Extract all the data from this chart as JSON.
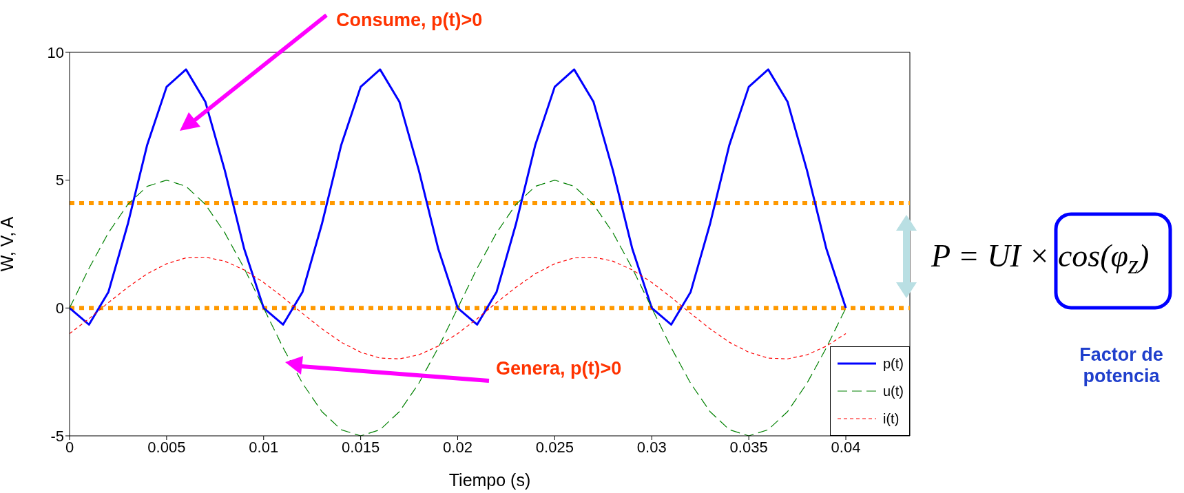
{
  "chart_data": {
    "type": "line",
    "xlabel": "Tiempo (s)",
    "ylabel": "W, V, A",
    "x": [
      0,
      0.001,
      0.002,
      0.003,
      0.004,
      0.005,
      0.006,
      0.007,
      0.008,
      0.009,
      0.01,
      0.011,
      0.012,
      0.013,
      0.014,
      0.015,
      0.016,
      0.017,
      0.018,
      0.019,
      0.02,
      0.021,
      0.022,
      0.023,
      0.024,
      0.025,
      0.026,
      0.027,
      0.028,
      0.029,
      0.03,
      0.031,
      0.032,
      0.033,
      0.034,
      0.035,
      0.036,
      0.037,
      0.038,
      0.039,
      0.04
    ],
    "series": [
      {
        "name": "p(t)",
        "color": "#0000ff",
        "line_style": "solid",
        "values": [
          0,
          -0.65,
          0.62,
          3.28,
          6.38,
          8.65,
          9.33,
          8.06,
          5.38,
          2.31,
          0,
          -0.65,
          0.62,
          3.28,
          6.38,
          8.65,
          9.33,
          8.06,
          5.38,
          2.31,
          0,
          -0.65,
          0.62,
          3.28,
          6.38,
          8.65,
          9.33,
          8.06,
          5.38,
          2.31,
          0,
          -0.65,
          0.62,
          3.28,
          6.38,
          8.65,
          9.33,
          8.06,
          5.38,
          2.31,
          0
        ]
      },
      {
        "name": "u(t)",
        "color": "#008000",
        "line_style": "dashed",
        "values": [
          0,
          1.55,
          2.94,
          4.05,
          4.76,
          5,
          4.76,
          4.05,
          2.94,
          1.55,
          0,
          -1.55,
          -2.94,
          -4.05,
          -4.76,
          -5,
          -4.76,
          -4.05,
          -2.94,
          -1.55,
          0,
          1.55,
          2.94,
          4.05,
          4.76,
          5,
          4.76,
          4.05,
          2.94,
          1.55,
          0,
          -1.55,
          -2.94,
          -4.05,
          -4.76,
          -5,
          -4.76,
          -4.05,
          -2.94,
          -1.55,
          0
        ]
      },
      {
        "name": "i(t)",
        "color": "#ff0000",
        "line_style": "dotted",
        "values": [
          -1,
          -0.42,
          0.21,
          0.81,
          1.34,
          1.73,
          1.96,
          1.99,
          1.83,
          1.49,
          1,
          0.42,
          -0.21,
          -0.81,
          -1.34,
          -1.73,
          -1.96,
          -1.99,
          -1.83,
          -1.49,
          -1,
          -0.42,
          0.21,
          0.81,
          1.34,
          1.73,
          1.96,
          1.99,
          1.83,
          1.49,
          1,
          0.42,
          -0.21,
          -0.81,
          -1.34,
          -1.73,
          -1.96,
          -1.99,
          -1.83,
          -1.49,
          -1
        ]
      }
    ],
    "xlim": [
      0,
      0.0433
    ],
    "xticks": [
      0,
      0.005,
      0.01,
      0.015,
      0.02,
      0.025,
      0.03,
      0.035,
      0.04
    ],
    "ylim": [
      -5,
      10
    ],
    "yticks": [
      -5,
      0,
      5,
      10
    ],
    "ref_lines": [
      {
        "axis": "y",
        "value": 0,
        "color": "#ff9900",
        "line_style": "dotted"
      },
      {
        "axis": "y",
        "value": 4.1,
        "color": "#ff9900",
        "line_style": "dotted"
      }
    ],
    "annotations": [
      "Consume, p(t)>0",
      "Genera, p(t)>0",
      "P = UI × cos(φ$_{z}$)",
      "Factor de potencia"
    ],
    "legend": "bottom right",
    "marker": "none",
    "grid": false
  }
}
